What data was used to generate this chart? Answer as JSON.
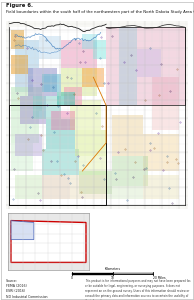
{
  "figure_title": "Figure 6.",
  "figure_caption": "Field boundaries within the south half of the northwestern part of the North Dakota Study Area (McKenzie County). Field boundaries are from North Dakota Industrial Commission (2016).",
  "page_background": "#ffffff",
  "title_fontsize": 3.8,
  "caption_fontsize": 2.8,
  "source_text": "Source:\nFEMA (2016)\nESRI (2016)\nND Industrial Commission",
  "disclaimer_text": "This product is for informational purposes and may not have been prepared for, or be suitable for legal, engineering, or surveying purposes. It does not represent an on-the-ground survey. Users of this information should review or consult the primary data and information sources to ascertain the usability of the information.",
  "map_bg": "#f5f5f5",
  "outer_border_color": "#000000",
  "grid_color": "#cccccc",
  "bold_grid_color": "#888888",
  "river_color": "#5599cc",
  "orange_line_color": "#e07820",
  "pink_region_color": "#f0b8c8",
  "inset_nd_outline": "#cc0000",
  "inset_study_fill": "#c8d4ee",
  "inset_study_border": "#2244aa",
  "inset_bg": "#e8e8e8"
}
